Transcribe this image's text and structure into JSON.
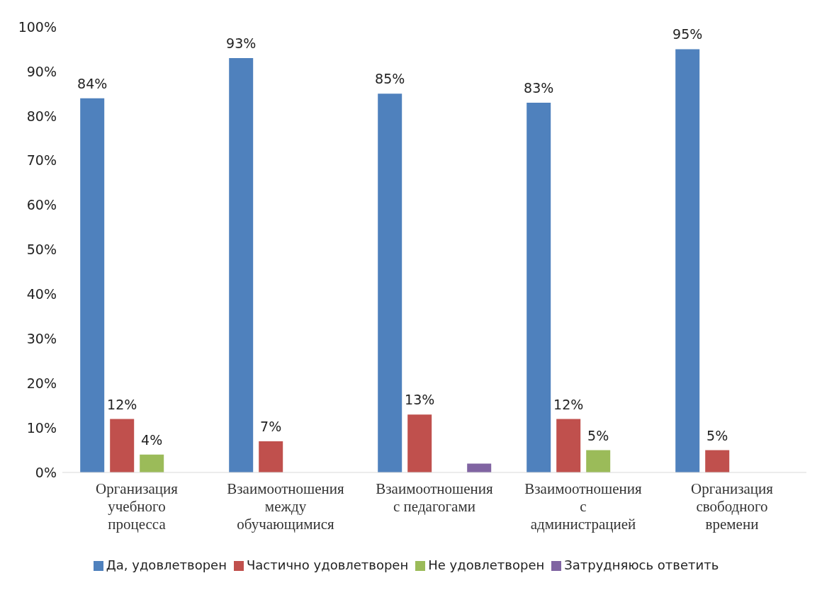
{
  "chart_data": {
    "type": "bar",
    "categories": [
      "Организация учебного процесса",
      "Взаимоотношения между обучающимися",
      "Взаимоотношения с педагогами",
      "Взаимоотношения с администрацией",
      "Организация свободного времени"
    ],
    "series": [
      {
        "name": "Да, удовлетворен",
        "color": "#4f81bd",
        "values": [
          84,
          93,
          85,
          83,
          95
        ],
        "value_labels": [
          "84%",
          "93%",
          "85%",
          "83%",
          "95%"
        ]
      },
      {
        "name": "Частично удовлетворен",
        "color": "#c0504d",
        "values": [
          12,
          7,
          13,
          12,
          5
        ],
        "value_labels": [
          "12%",
          "7%",
          "13%",
          "12%",
          "5%"
        ]
      },
      {
        "name": "Не удовлетворен",
        "color": "#9bbb59",
        "values": [
          4,
          null,
          null,
          5,
          null
        ],
        "value_labels": [
          "4%",
          null,
          null,
          "5%",
          null
        ]
      },
      {
        "name": "Затрудняюсь ответить",
        "color": "#8064a2",
        "values": [
          null,
          null,
          2,
          null,
          null
        ],
        "value_labels": [
          null,
          null,
          null,
          null,
          null
        ]
      }
    ],
    "ylim": [
      0,
      100
    ],
    "yticks": [
      {
        "value": 0,
        "label": "0%"
      },
      {
        "value": 10,
        "label": "10%"
      },
      {
        "value": 20,
        "label": "20%"
      },
      {
        "value": 30,
        "label": "30%"
      },
      {
        "value": 40,
        "label": "40%"
      },
      {
        "value": 50,
        "label": "50%"
      },
      {
        "value": 60,
        "label": "60%"
      },
      {
        "value": 70,
        "label": "70%"
      },
      {
        "value": 80,
        "label": "80%"
      },
      {
        "value": 90,
        "label": "90%"
      },
      {
        "value": 100,
        "label": "100%"
      }
    ],
    "grid": false,
    "legend": "bottom"
  }
}
